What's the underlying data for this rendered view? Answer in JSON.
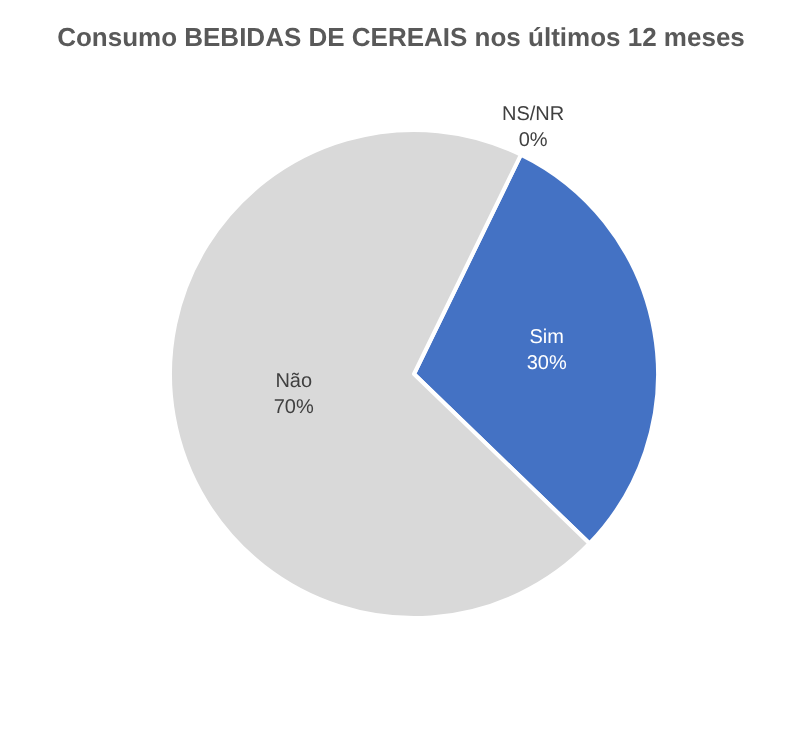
{
  "chart_data": {
    "type": "pie",
    "title": "Consumo BEBIDAS DE CEREAIS nos últimos 12 meses",
    "categories": [
      "NS/NR",
      "Sim",
      "Não"
    ],
    "values": [
      0,
      30,
      70
    ],
    "value_labels": [
      "0%",
      "30%",
      "70%"
    ],
    "colors": [
      "#a5a5a5",
      "#4472c4",
      "#d9d9d9"
    ],
    "legend": false
  }
}
